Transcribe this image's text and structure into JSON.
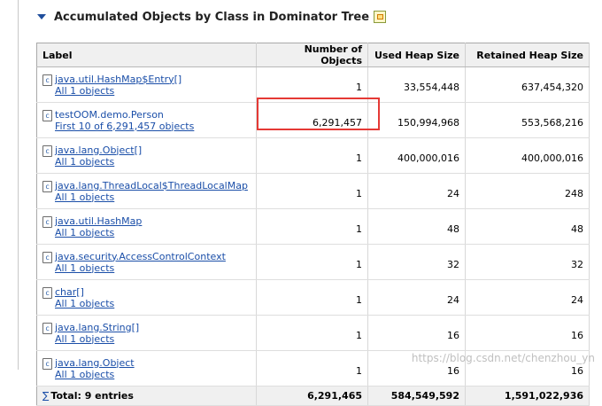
{
  "section": {
    "title": "Accumulated Objects by Class in Dominator Tree"
  },
  "table": {
    "columns": [
      "Label",
      "Number of Objects",
      "Used Heap Size",
      "Retained Heap Size"
    ],
    "rows": [
      {
        "class": "java.util.HashMap$Entry[]",
        "link": "All 1 objects",
        "objects": "1",
        "used": "33,554,448",
        "retained": "637,454,320"
      },
      {
        "class": "testOOM.demo.Person",
        "link": "First 10 of 6,291,457 objects",
        "objects": "6,291,457",
        "used": "150,994,968",
        "retained": "553,568,216"
      },
      {
        "class": "java.lang.Object[]",
        "link": "All 1 objects",
        "objects": "1",
        "used": "400,000,016",
        "retained": "400,000,016"
      },
      {
        "class": "java.lang.ThreadLocal$ThreadLocalMap",
        "link": "All 1 objects",
        "objects": "1",
        "used": "24",
        "retained": "248"
      },
      {
        "class": "java.util.HashMap",
        "link": "All 1 objects",
        "objects": "1",
        "used": "48",
        "retained": "48"
      },
      {
        "class": "java.security.AccessControlContext",
        "link": "All 1 objects",
        "objects": "1",
        "used": "32",
        "retained": "32"
      },
      {
        "class": "char[]",
        "link": "All 1 objects",
        "objects": "1",
        "used": "24",
        "retained": "24"
      },
      {
        "class": "java.lang.String[]",
        "link": "All 1 objects",
        "objects": "1",
        "used": "16",
        "retained": "16"
      },
      {
        "class": "java.lang.Object",
        "link": "All 1 objects",
        "objects": "1",
        "used": "16",
        "retained": "16"
      }
    ],
    "total": {
      "label": "Total: 9 entries",
      "objects": "6,291,465",
      "used": "584,549,592",
      "retained": "1,591,022,936"
    }
  },
  "icons": {
    "collapse": "chevron-down-icon",
    "title": "export-icon",
    "class": "class-file-icon",
    "total": "sigma-icon"
  },
  "colors": {
    "link": "#1a4ea8",
    "highlight": "#e53935",
    "header_bg": "#f0f0f0"
  },
  "watermark": "https://blog.csdn.net/chenzhou_yn"
}
